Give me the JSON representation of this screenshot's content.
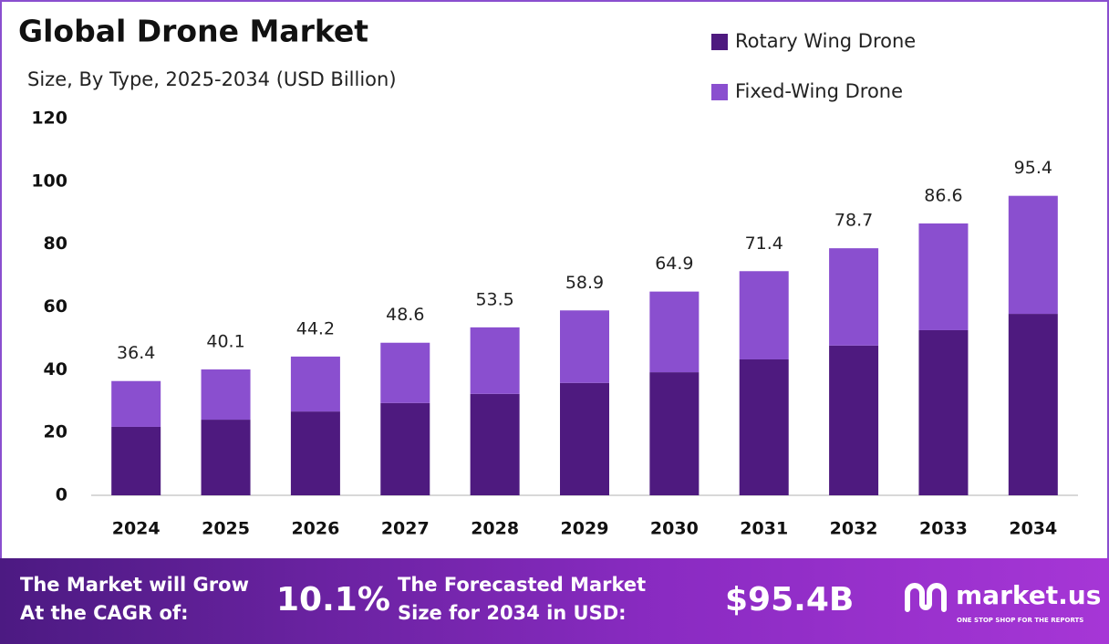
{
  "chart_data": {
    "type": "stacked-bar",
    "title": "Global Drone Market",
    "subtitle": "Size, By Type, 2025-2034 (USD Billion)",
    "categories": [
      "2024",
      "2025",
      "2026",
      "2027",
      "2028",
      "2029",
      "2030",
      "2031",
      "2032",
      "2033",
      "2034"
    ],
    "series": [
      {
        "name": "Rotary Wing Drone",
        "color": "#4e1a7f",
        "values": [
          21.8,
          24.1,
          26.7,
          29.4,
          32.3,
          35.8,
          39.2,
          43.3,
          47.7,
          52.6,
          57.8
        ]
      },
      {
        "name": "Fixed-Wing Drone",
        "color": "#8a4fcf",
        "values": [
          14.6,
          16.0,
          17.5,
          19.2,
          21.2,
          23.1,
          25.7,
          28.1,
          31.0,
          34.0,
          37.6
        ]
      }
    ],
    "totals": [
      36.4,
      40.1,
      44.2,
      48.6,
      53.5,
      58.9,
      64.9,
      71.4,
      78.7,
      86.6,
      95.4
    ],
    "ylim": [
      0,
      120
    ],
    "yticks": [
      0,
      20,
      40,
      60,
      80,
      100,
      120
    ],
    "grid": false,
    "legend": "top-right"
  },
  "footer": {
    "cagr_label": [
      "The Market will Grow",
      "At the CAGR of:"
    ],
    "cagr_value": "10.1%",
    "forecast_label": [
      "The Forecasted Market",
      "Size for 2034 in USD:"
    ],
    "forecast_value": "$95.4B",
    "brand": "market.us",
    "tagline": "ONE STOP SHOP FOR THE REPORTS"
  }
}
